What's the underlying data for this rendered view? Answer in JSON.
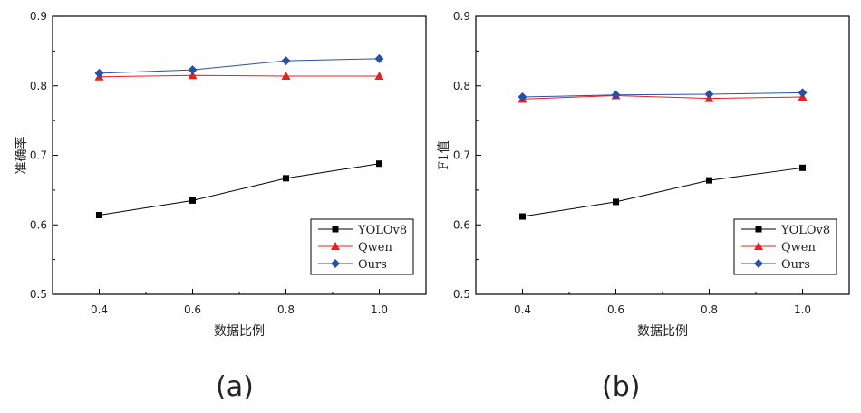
{
  "panels": [
    {
      "label": "(a)"
    },
    {
      "label": "(b)"
    }
  ],
  "chart_data": [
    {
      "type": "line",
      "title": "",
      "xlabel": "数据比例",
      "ylabel": "准确率",
      "x": [
        0.4,
        0.6,
        0.8,
        1.0
      ],
      "x_ticks": [
        "0.4",
        "0.6",
        "0.8",
        "1.0"
      ],
      "xlim": [
        0.3,
        1.1
      ],
      "y_ticks": [
        "0.5",
        "0.6",
        "0.7",
        "0.8",
        "0.9"
      ],
      "ylim": [
        0.5,
        0.9
      ],
      "grid": false,
      "legend_position": "bottom-right",
      "series": [
        {
          "name": "YOLOv8",
          "values": [
            0.614,
            0.635,
            0.667,
            0.688
          ],
          "color": "#000000",
          "marker": "square"
        },
        {
          "name": "Qwen",
          "values": [
            0.813,
            0.815,
            0.814,
            0.814
          ],
          "color": "#e8201c",
          "marker": "triangle"
        },
        {
          "name": "Ours",
          "values": [
            0.818,
            0.823,
            0.836,
            0.839
          ],
          "color": "#2a4fa8",
          "marker": "diamond"
        }
      ]
    },
    {
      "type": "line",
      "title": "",
      "xlabel": "数据比例",
      "ylabel": "F1值",
      "x": [
        0.4,
        0.6,
        0.8,
        1.0
      ],
      "x_ticks": [
        "0.4",
        "0.6",
        "0.8",
        "1.0"
      ],
      "xlim": [
        0.3,
        1.1
      ],
      "y_ticks": [
        "0.5",
        "0.6",
        "0.7",
        "0.8",
        "0.9"
      ],
      "ylim": [
        0.5,
        0.9
      ],
      "grid": false,
      "legend_position": "bottom-right",
      "series": [
        {
          "name": "YOLOv8",
          "values": [
            0.612,
            0.633,
            0.664,
            0.682
          ],
          "color": "#000000",
          "marker": "square"
        },
        {
          "name": "Qwen",
          "values": [
            0.781,
            0.786,
            0.782,
            0.784
          ],
          "color": "#e8201c",
          "marker": "triangle"
        },
        {
          "name": "Ours",
          "values": [
            0.784,
            0.787,
            0.788,
            0.79
          ],
          "color": "#2a4fa8",
          "marker": "diamond"
        }
      ]
    }
  ]
}
